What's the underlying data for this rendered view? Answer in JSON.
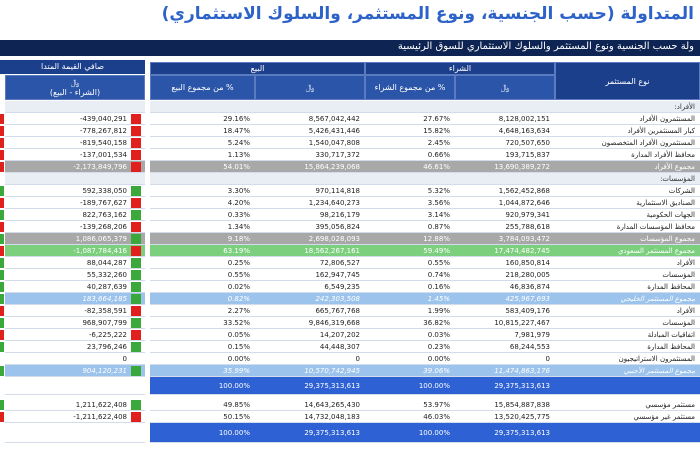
{
  "title": "المتداولة (حسب الجنسية، ونوع المستثمر، والسلوك الاستثماري)",
  "subtitle": "ولة حسب الجنسية ونوع المستثمر والسلوك الاستثماري للسوق الرئيسية",
  "net_header": "صافي القيمة المتدا",
  "columns": {
    "investor_type": "نوع المستثمر",
    "buy": "الشراء",
    "sell": "البيع",
    "currency": "﷼",
    "buy_pct": "% من مجموع الشراء",
    "sell_pct": "% من مجموع البيع",
    "net_sub": "(الشراء - البيع)"
  },
  "rows": [
    {
      "kind": "section",
      "label": "الأفراد:"
    },
    {
      "kind": "row",
      "label": "المستثمرون الأفراد",
      "buy": "8,128,002,151",
      "buy_pct": "27.67%",
      "sell": "8,567,042,442",
      "sell_pct": "29.16%",
      "net": "-439,040,291"
    },
    {
      "kind": "row",
      "label": "كبار المستثمرين الأفراد",
      "buy": "4,648,163,634",
      "buy_pct": "15.82%",
      "sell": "5,426,431,446",
      "sell_pct": "18.47%",
      "net": "-778,267,812"
    },
    {
      "kind": "row",
      "label": "المستثمرون الأفراد المتخصصون",
      "buy": "720,507,650",
      "buy_pct": "2.45%",
      "sell": "1,540,047,808",
      "sell_pct": "5.24%",
      "net": "-819,540,158"
    },
    {
      "kind": "row",
      "label": "محافظ الأفراد المدارة",
      "buy": "193,715,837",
      "buy_pct": "0.66%",
      "sell": "330,717,372",
      "sell_pct": "1.13%",
      "net": "-137,001,534"
    },
    {
      "kind": "total",
      "label": "مجموع الأفراد",
      "buy": "13,690,389,272",
      "buy_pct": "46.61%",
      "sell": "15,864,239,068",
      "sell_pct": "54.01%",
      "net": "-2,173,849,796"
    },
    {
      "kind": "section",
      "label": "المؤسسات:"
    },
    {
      "kind": "row",
      "label": "الشركات",
      "buy": "1,562,452,868",
      "buy_pct": "5.32%",
      "sell": "970,114,818",
      "sell_pct": "3.30%",
      "net": "592,338,050"
    },
    {
      "kind": "row",
      "label": "الصناديق الاستثمارية",
      "buy": "1,044,872,646",
      "buy_pct": "3.56%",
      "sell": "1,234,640,273",
      "sell_pct": "4.20%",
      "net": "-189,767,627"
    },
    {
      "kind": "row",
      "label": "الجهات الحكومية",
      "buy": "920,979,341",
      "buy_pct": "3.14%",
      "sell": "98,216,179",
      "sell_pct": "0.33%",
      "net": "822,763,162"
    },
    {
      "kind": "row",
      "label": "محافظ المؤسسات المدارة",
      "buy": "255,788,618",
      "buy_pct": "0.87%",
      "sell": "395,056,824",
      "sell_pct": "1.34%",
      "net": "-139,268,206"
    },
    {
      "kind": "total",
      "label": "مجموع المؤسسات",
      "buy": "3,784,093,472",
      "buy_pct": "12.88%",
      "sell": "2,698,028,093",
      "sell_pct": "9.18%",
      "net": "1,086,065,379"
    },
    {
      "kind": "saudi",
      "label": "مجموع المستثمر السعودي",
      "buy": "17,474,482,745",
      "buy_pct": "59.49%",
      "sell": "18,562,267,161",
      "sell_pct": "63.19%",
      "net": "-1,087,784,416"
    },
    {
      "kind": "row",
      "label": "الأفراد",
      "buy": "160,850,814",
      "buy_pct": "0.55%",
      "sell": "72,806,527",
      "sell_pct": "0.25%",
      "net": "88,044,287"
    },
    {
      "kind": "row",
      "label": "المؤسسات",
      "buy": "218,280,005",
      "buy_pct": "0.74%",
      "sell": "162,947,745",
      "sell_pct": "0.55%",
      "net": "55,332,260"
    },
    {
      "kind": "row",
      "label": "المحافظ المدارة",
      "buy": "46,836,874",
      "buy_pct": "0.16%",
      "sell": "6,549,235",
      "sell_pct": "0.02%",
      "net": "40,287,639"
    },
    {
      "kind": "regional",
      "label": "مجموع المستثمر الخليجي",
      "buy": "425,967,693",
      "buy_pct": "1.45%",
      "sell": "242,303,508",
      "sell_pct": "0.82%",
      "net": "183,664,185"
    },
    {
      "kind": "row",
      "label": "الأفراد",
      "buy": "583,409,176",
      "buy_pct": "1.99%",
      "sell": "665,767,768",
      "sell_pct": "2.27%",
      "net": "-82,358,591"
    },
    {
      "kind": "row",
      "label": "المؤسسات",
      "buy": "10,815,227,467",
      "buy_pct": "36.82%",
      "sell": "9,846,319,668",
      "sell_pct": "33.52%",
      "net": "968,907,799"
    },
    {
      "kind": "row",
      "label": "اتفاقيات المبادلة",
      "buy": "7,981,979",
      "buy_pct": "0.03%",
      "sell": "14,207,202",
      "sell_pct": "0.05%",
      "net": "-6,225,222"
    },
    {
      "kind": "row",
      "label": "المحافظ المدارة",
      "buy": "68,244,553",
      "buy_pct": "0.23%",
      "sell": "44,448,307",
      "sell_pct": "0.15%",
      "net": "23,796,246"
    },
    {
      "kind": "row",
      "label": "المستثمرون الاستراتيجيون",
      "buy": "0",
      "buy_pct": "0.00%",
      "sell": "0",
      "sell_pct": "0.00%",
      "net": "0"
    },
    {
      "kind": "regional",
      "label": "مجموع المستثمر الأجنبي",
      "buy": "11,474,863,176",
      "buy_pct": "39.06%",
      "sell": "10,570,742,945",
      "sell_pct": "35.99%",
      "net": "904,120,231"
    },
    {
      "kind": "grand",
      "buy": "29,375,313,613",
      "buy_pct": "100.00%",
      "sell": "29,375,313,613",
      "sell_pct": "100.00%"
    },
    {
      "kind": "row",
      "label": "مستثمر مؤسسي",
      "buy": "15,854,887,838",
      "buy_pct": "53.97%",
      "sell": "14,643,265,430",
      "sell_pct": "49.85%",
      "net": "1,211,622,408"
    },
    {
      "kind": "row",
      "label": "مستثمر غير مؤسسي",
      "buy": "13,520,425,775",
      "buy_pct": "46.03%",
      "sell": "14,732,048,183",
      "sell_pct": "50.15%",
      "net": "-1,211,622,408"
    },
    {
      "kind": "grand",
      "buy": "29,375,313,613",
      "buy_pct": "100.00%",
      "sell": "29,375,313,613",
      "sell_pct": "100.00%"
    }
  ]
}
